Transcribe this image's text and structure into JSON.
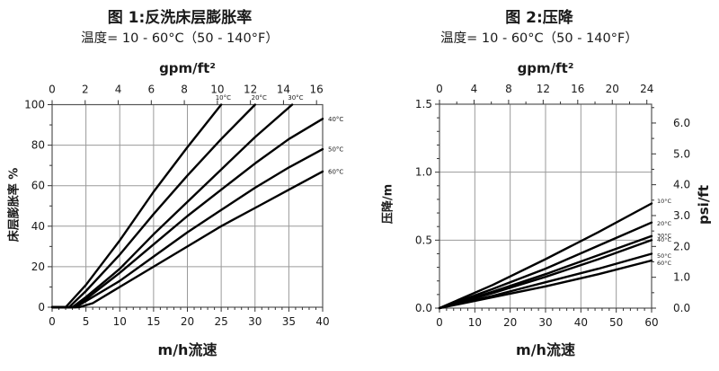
{
  "colors": {
    "curve": "#000000",
    "grid": "#9a9a9a",
    "box": "#555555",
    "tick": "#333333",
    "text": "#1a1a1a"
  },
  "chart_data": [
    {
      "type": "line",
      "title": "图 1:反洗床层膨胀率",
      "subtitle": "温度= 10 - 60°C（50 - 140°F）",
      "axes": {
        "top": {
          "label": "gpm/ft²",
          "range": [
            0,
            16.37
          ],
          "ticks": [
            0,
            2,
            4,
            6,
            8,
            10,
            12,
            14,
            16
          ],
          "minor_step": null
        },
        "bottom": {
          "label": "m/h流速",
          "range": [
            0,
            40
          ],
          "ticks": [
            0,
            5,
            10,
            15,
            20,
            25,
            30,
            35,
            40
          ],
          "minor_step": 1
        },
        "left": {
          "label": "床层膨胀率 %",
          "range": [
            0,
            100
          ],
          "ticks": [
            0,
            20,
            40,
            60,
            80,
            100
          ],
          "minor_step": 10
        }
      },
      "grid": "major",
      "legend_position": "curve-labels",
      "series": [
        {
          "name": "10°C",
          "label_side": "top",
          "label_at": 25.3,
          "x": [
            0,
            2,
            5,
            10,
            15,
            20,
            25
          ],
          "y": [
            0,
            0,
            11,
            33,
            57,
            79,
            100
          ]
        },
        {
          "name": "20°C",
          "label_side": "top",
          "label_at": 30.6,
          "x": [
            0,
            2.5,
            5,
            10,
            15,
            20,
            25,
            30
          ],
          "y": [
            0,
            0,
            8,
            26,
            46,
            65,
            83,
            100
          ]
        },
        {
          "name": "30°C",
          "label_side": "top",
          "label_at": 36,
          "x": [
            0,
            3,
            5,
            10,
            15,
            20,
            25,
            30,
            35.5
          ],
          "y": [
            0,
            0,
            5,
            19,
            36,
            52,
            68,
            84,
            100
          ]
        },
        {
          "name": "40°C",
          "label_side": "right",
          "label_at": 93,
          "x": [
            0,
            3,
            5,
            10,
            15,
            20,
            25,
            30,
            35,
            40
          ],
          "y": [
            0,
            0,
            4,
            17,
            31,
            45,
            58,
            71,
            83,
            93
          ]
        },
        {
          "name": "50°C",
          "label_side": "right",
          "label_at": 78,
          "x": [
            0,
            3.5,
            5,
            10,
            15,
            20,
            25,
            30,
            35,
            40
          ],
          "y": [
            0,
            0,
            3,
            13,
            25,
            37,
            48,
            59,
            69,
            78
          ]
        },
        {
          "name": "60°C",
          "label_side": "right",
          "label_at": 67,
          "x": [
            0,
            4,
            6,
            10,
            15,
            20,
            25,
            30,
            35,
            40
          ],
          "y": [
            0,
            0,
            2,
            10,
            20,
            30,
            40,
            49,
            58,
            67
          ]
        }
      ]
    },
    {
      "type": "line",
      "title": "图 2:压降",
      "subtitle": "温度= 10 - 60°C（50 - 140°F）",
      "axes": {
        "top": {
          "label": "gpm/ft²",
          "range": [
            0,
            24.55
          ],
          "ticks": [
            0,
            4,
            8,
            12,
            16,
            20,
            24
          ],
          "minor_step": 2
        },
        "bottom": {
          "label": "m/h流速",
          "range": [
            0,
            60
          ],
          "ticks": [
            0,
            10,
            20,
            30,
            40,
            50,
            60
          ],
          "minor_step": 2
        },
        "left": {
          "label": "压降/m",
          "range": [
            0,
            1.5
          ],
          "ticks": [
            0,
            0.5,
            1,
            1.5
          ],
          "tick_labels": [
            "0.0",
            "0.5",
            "1.0",
            "1.5"
          ],
          "minor_step": 0.1
        },
        "right": {
          "label": "psi/ft",
          "range": [
            0,
            6.61
          ],
          "ticks": [
            0,
            1,
            2,
            3,
            4,
            5,
            6
          ],
          "tick_labels": [
            "0.0",
            "1.0",
            "2.0",
            "3.0",
            "4.0",
            "5.0",
            "6.0"
          ],
          "minor_step": 0.5
        }
      },
      "grid": "major",
      "legend_position": "curve-labels",
      "series": [
        {
          "name": "10°C",
          "label_side": "right",
          "label_at": 0.79,
          "x": [
            0,
            15,
            30,
            45,
            60
          ],
          "y": [
            0,
            0.17,
            0.36,
            0.56,
            0.77
          ]
        },
        {
          "name": "20°C",
          "label_side": "right",
          "label_at": 0.625,
          "x": [
            0,
            15,
            30,
            45,
            60
          ],
          "y": [
            0,
            0.14,
            0.29,
            0.46,
            0.63
          ]
        },
        {
          "name": "30°C",
          "label_side": "right",
          "label_at": 0.535,
          "x": [
            0,
            15,
            30,
            45,
            60
          ],
          "y": [
            0,
            0.12,
            0.25,
            0.39,
            0.53
          ]
        },
        {
          "name": "40°C",
          "label_side": "right",
          "label_at": 0.505,
          "x": [
            0,
            15,
            30,
            45,
            60
          ],
          "y": [
            0,
            0.11,
            0.23,
            0.36,
            0.5
          ]
        },
        {
          "name": "50°C",
          "label_side": "right",
          "label_at": 0.385,
          "x": [
            0,
            15,
            30,
            45,
            60
          ],
          "y": [
            0,
            0.09,
            0.19,
            0.29,
            0.4
          ]
        },
        {
          "name": "60°C",
          "label_side": "right",
          "label_at": 0.335,
          "x": [
            0,
            15,
            30,
            45,
            60
          ],
          "y": [
            0,
            0.08,
            0.16,
            0.25,
            0.35
          ]
        }
      ]
    }
  ]
}
